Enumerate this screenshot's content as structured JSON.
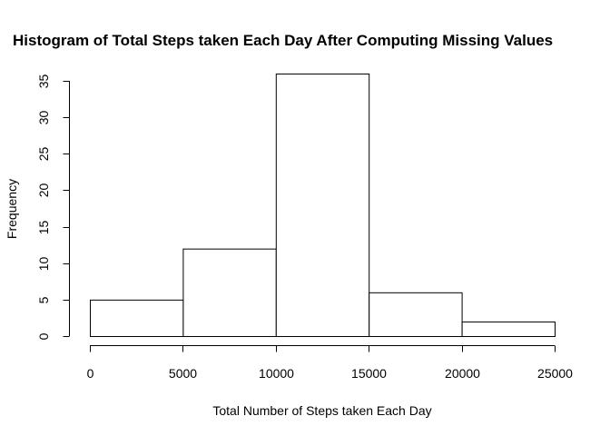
{
  "chart_data": {
    "type": "bar",
    "title": "Histogram of Total Steps taken Each Day After Computing Missing Values",
    "xlabel": "Total Number of Steps taken Each Day",
    "ylabel": "Frequency",
    "bins": [
      {
        "from": 0,
        "to": 5000,
        "count": 5
      },
      {
        "from": 5000,
        "to": 10000,
        "count": 12
      },
      {
        "from": 10000,
        "to": 15000,
        "count": 36
      },
      {
        "from": 15000,
        "to": 20000,
        "count": 6
      },
      {
        "from": 20000,
        "to": 25000,
        "count": 2
      }
    ],
    "x_ticks": [
      "0",
      "5000",
      "10000",
      "15000",
      "20000",
      "25000"
    ],
    "y_ticks": [
      "0",
      "5",
      "10",
      "15",
      "20",
      "25",
      "30",
      "35"
    ],
    "xlim": [
      0,
      25000
    ],
    "ylim": [
      0,
      35
    ],
    "grid": false,
    "bar_fill": "#ffffff",
    "bar_stroke": "#000000"
  }
}
